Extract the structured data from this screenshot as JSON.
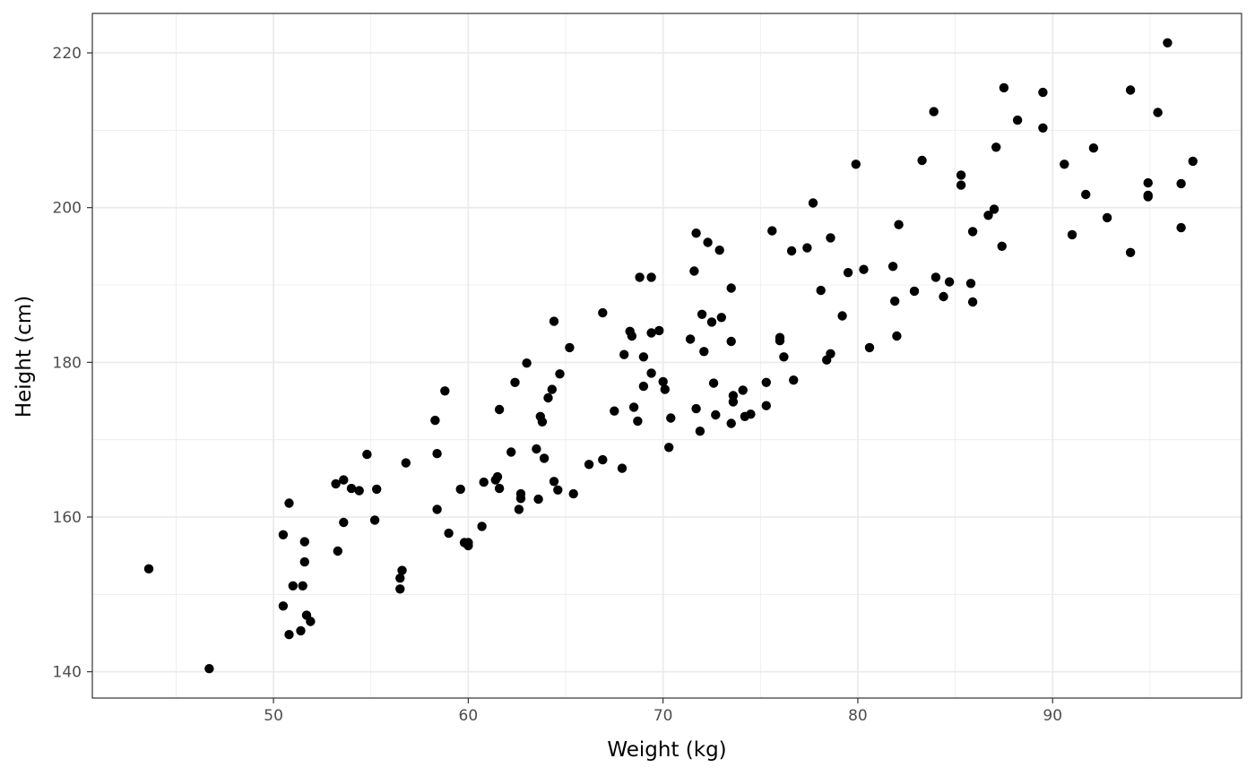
{
  "chart_data": {
    "type": "scatter",
    "title": "",
    "xlabel": "Weight (kg)",
    "ylabel": "Height (cm)",
    "xlim": [
      40.7,
      99.7
    ],
    "ylim": [
      136.6,
      225.1
    ],
    "x_ticks": [
      50,
      60,
      70,
      80,
      90
    ],
    "y_ticks": [
      140,
      160,
      180,
      200,
      220
    ],
    "x_tick_labels": [
      "50",
      "60",
      "70",
      "80",
      "90"
    ],
    "y_tick_labels": [
      "140",
      "160",
      "180",
      "200",
      "220"
    ],
    "grid": true,
    "legend": "none",
    "point_color": "#000000",
    "panel_border_color": "#333333",
    "grid_color": "#ebebeb",
    "points": [
      [
        43.6,
        153.3
      ],
      [
        46.7,
        140.4
      ],
      [
        50.5,
        157.7
      ],
      [
        50.5,
        148.5
      ],
      [
        50.8,
        161.8
      ],
      [
        50.8,
        144.8
      ],
      [
        51.0,
        151.1
      ],
      [
        51.4,
        145.3
      ],
      [
        51.5,
        151.1
      ],
      [
        51.6,
        156.8
      ],
      [
        51.6,
        154.2
      ],
      [
        51.7,
        147.3
      ],
      [
        51.9,
        146.5
      ],
      [
        53.2,
        164.3
      ],
      [
        53.3,
        155.6
      ],
      [
        53.6,
        164.8
      ],
      [
        53.6,
        159.3
      ],
      [
        54.0,
        163.7
      ],
      [
        54.4,
        163.4
      ],
      [
        54.8,
        168.1
      ],
      [
        55.2,
        159.6
      ],
      [
        55.3,
        163.6
      ],
      [
        56.5,
        150.7
      ],
      [
        56.5,
        152.1
      ],
      [
        56.6,
        153.1
      ],
      [
        56.8,
        167.0
      ],
      [
        58.3,
        172.5
      ],
      [
        58.4,
        168.2
      ],
      [
        58.4,
        161.0
      ],
      [
        58.8,
        176.3
      ],
      [
        59.0,
        157.9
      ],
      [
        59.6,
        163.6
      ],
      [
        59.8,
        156.7
      ],
      [
        60.0,
        156.3
      ],
      [
        60.0,
        156.7
      ],
      [
        60.7,
        158.8
      ],
      [
        60.8,
        164.5
      ],
      [
        61.4,
        164.8
      ],
      [
        61.5,
        165.2
      ],
      [
        61.6,
        173.9
      ],
      [
        61.6,
        163.7
      ],
      [
        62.2,
        168.4
      ],
      [
        62.4,
        177.4
      ],
      [
        62.6,
        161.0
      ],
      [
        62.7,
        163.0
      ],
      [
        62.7,
        162.4
      ],
      [
        63.0,
        179.9
      ],
      [
        63.5,
        168.8
      ],
      [
        63.6,
        162.3
      ],
      [
        63.7,
        173.0
      ],
      [
        63.8,
        172.3
      ],
      [
        63.9,
        167.6
      ],
      [
        64.1,
        175.4
      ],
      [
        64.3,
        176.5
      ],
      [
        64.4,
        185.3
      ],
      [
        64.4,
        164.6
      ],
      [
        64.6,
        163.5
      ],
      [
        64.7,
        178.5
      ],
      [
        65.2,
        181.9
      ],
      [
        65.4,
        163.0
      ],
      [
        66.2,
        166.8
      ],
      [
        66.9,
        167.4
      ],
      [
        66.9,
        186.4
      ],
      [
        67.5,
        173.7
      ],
      [
        67.9,
        166.3
      ],
      [
        68.0,
        181.0
      ],
      [
        68.3,
        184.0
      ],
      [
        68.4,
        183.4
      ],
      [
        68.5,
        174.2
      ],
      [
        68.7,
        172.4
      ],
      [
        68.8,
        191.0
      ],
      [
        69.0,
        180.7
      ],
      [
        69.0,
        176.9
      ],
      [
        69.4,
        191.0
      ],
      [
        69.4,
        183.8
      ],
      [
        69.4,
        178.6
      ],
      [
        69.8,
        184.1
      ],
      [
        70.0,
        177.5
      ],
      [
        70.1,
        176.5
      ],
      [
        70.3,
        169.0
      ],
      [
        70.4,
        172.8
      ],
      [
        71.4,
        183.0
      ],
      [
        71.6,
        191.8
      ],
      [
        71.7,
        196.7
      ],
      [
        71.7,
        174.0
      ],
      [
        71.9,
        171.1
      ],
      [
        72.0,
        186.2
      ],
      [
        72.1,
        181.4
      ],
      [
        72.3,
        195.5
      ],
      [
        72.5,
        185.2
      ],
      [
        72.6,
        177.3
      ],
      [
        72.7,
        173.2
      ],
      [
        72.9,
        194.5
      ],
      [
        73.0,
        185.8
      ],
      [
        73.5,
        182.7
      ],
      [
        73.5,
        189.6
      ],
      [
        73.5,
        172.1
      ],
      [
        73.6,
        175.7
      ],
      [
        73.6,
        174.9
      ],
      [
        74.1,
        176.4
      ],
      [
        74.2,
        173.0
      ],
      [
        74.5,
        173.3
      ],
      [
        75.3,
        177.4
      ],
      [
        75.3,
        174.4
      ],
      [
        75.6,
        197.0
      ],
      [
        76.0,
        183.2
      ],
      [
        76.0,
        182.8
      ],
      [
        76.2,
        180.7
      ],
      [
        76.6,
        194.4
      ],
      [
        76.7,
        177.7
      ],
      [
        77.4,
        194.8
      ],
      [
        77.7,
        200.6
      ],
      [
        78.1,
        189.3
      ],
      [
        78.4,
        180.3
      ],
      [
        78.6,
        196.1
      ],
      [
        78.6,
        181.1
      ],
      [
        79.2,
        186.0
      ],
      [
        79.5,
        191.6
      ],
      [
        79.9,
        205.6
      ],
      [
        80.3,
        192.0
      ],
      [
        80.6,
        181.9
      ],
      [
        81.8,
        192.4
      ],
      [
        81.9,
        187.9
      ],
      [
        82.0,
        183.4
      ],
      [
        82.1,
        197.8
      ],
      [
        82.9,
        189.2
      ],
      [
        83.3,
        206.1
      ],
      [
        83.9,
        212.4
      ],
      [
        84.0,
        191.0
      ],
      [
        84.4,
        188.5
      ],
      [
        84.7,
        190.4
      ],
      [
        85.3,
        204.2
      ],
      [
        85.3,
        202.9
      ],
      [
        85.8,
        190.2
      ],
      [
        85.9,
        187.8
      ],
      [
        85.9,
        196.9
      ],
      [
        86.7,
        199.0
      ],
      [
        87.0,
        199.8
      ],
      [
        87.1,
        207.8
      ],
      [
        87.4,
        195.0
      ],
      [
        87.5,
        215.5
      ],
      [
        88.2,
        211.3
      ],
      [
        89.5,
        210.3
      ],
      [
        89.5,
        214.9
      ],
      [
        90.6,
        205.6
      ],
      [
        91.0,
        196.5
      ],
      [
        91.7,
        201.7
      ],
      [
        92.1,
        207.7
      ],
      [
        92.8,
        198.7
      ],
      [
        94.0,
        194.2
      ],
      [
        94.0,
        215.2
      ],
      [
        94.9,
        203.2
      ],
      [
        94.9,
        201.4
      ],
      [
        94.9,
        201.6
      ],
      [
        95.4,
        212.3
      ],
      [
        95.9,
        221.3
      ],
      [
        96.6,
        203.1
      ],
      [
        96.6,
        197.4
      ],
      [
        97.2,
        206.0
      ]
    ]
  }
}
